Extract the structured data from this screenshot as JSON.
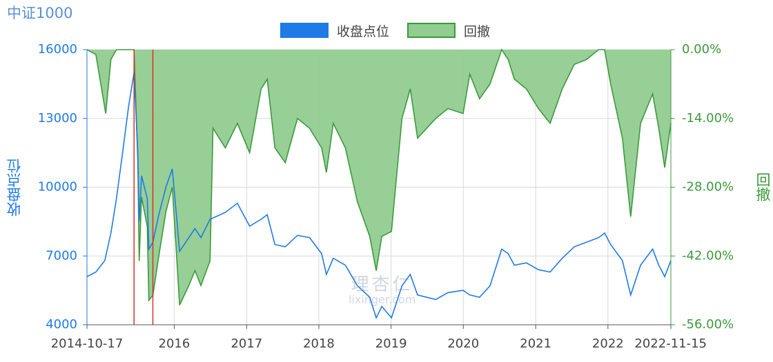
{
  "chart_data": {
    "type": "line",
    "title": "中证1000",
    "legend": [
      {
        "name": "收盘点位",
        "color": "#1e7ae6"
      },
      {
        "name": "回撤",
        "color": "#3a9a3a",
        "fill": "#91cc91"
      }
    ],
    "ylabel_left": "收盘点位",
    "ylabel_right": "回撤",
    "ylim_left": [
      4000,
      16000
    ],
    "yticks_left": [
      "16000",
      "13000",
      "10000",
      "7000",
      "4000"
    ],
    "ylim_right": [
      -0.56,
      0
    ],
    "yticks_right": [
      "0.00%",
      "-14.00%",
      "-28.00%",
      "-42.00%",
      "-56.00%"
    ],
    "x_start": "2014-10-17",
    "x_end": "2022-11-15",
    "xticks": [
      "2014-10-17",
      "2016",
      "2017",
      "2018",
      "2019",
      "2020",
      "2021",
      "2022",
      "2022-11-15"
    ],
    "grid": true,
    "legend_position": "top-center",
    "markers": [
      "2015-06-12",
      "2015-09-15"
    ],
    "series": [
      {
        "name": "收盘点位",
        "points": [
          [
            "2014-10-17",
            6100
          ],
          [
            "2014-12-01",
            6300
          ],
          [
            "2015-01-15",
            6800
          ],
          [
            "2015-02-15",
            8000
          ],
          [
            "2015-03-15",
            9500
          ],
          [
            "2015-04-15",
            11500
          ],
          [
            "2015-05-15",
            13500
          ],
          [
            "2015-06-12",
            15000
          ],
          [
            "2015-07-01",
            11500
          ],
          [
            "2015-07-08",
            8500
          ],
          [
            "2015-07-20",
            10500
          ],
          [
            "2015-08-18",
            9500
          ],
          [
            "2015-08-26",
            7300
          ],
          [
            "2015-09-15",
            7600
          ],
          [
            "2015-10-15",
            8800
          ],
          [
            "2015-11-20",
            10000
          ],
          [
            "2015-12-22",
            10800
          ],
          [
            "2016-01-10",
            9000
          ],
          [
            "2016-01-28",
            7200
          ],
          [
            "2016-03-15",
            7800
          ],
          [
            "2016-04-15",
            8200
          ],
          [
            "2016-05-15",
            7800
          ],
          [
            "2016-06-30",
            8600
          ],
          [
            "2016-09-15",
            8900
          ],
          [
            "2016-11-15",
            9300
          ],
          [
            "2017-01-16",
            8300
          ],
          [
            "2017-03-15",
            8600
          ],
          [
            "2017-04-15",
            8800
          ],
          [
            "2017-05-24",
            7500
          ],
          [
            "2017-07-15",
            7400
          ],
          [
            "2017-09-15",
            7900
          ],
          [
            "2017-11-15",
            7800
          ],
          [
            "2018-01-15",
            7100
          ],
          [
            "2018-02-08",
            6200
          ],
          [
            "2018-03-15",
            6900
          ],
          [
            "2018-05-15",
            6600
          ],
          [
            "2018-07-15",
            5700
          ],
          [
            "2018-09-15",
            5200
          ],
          [
            "2018-10-18",
            4300
          ],
          [
            "2018-11-15",
            4800
          ],
          [
            "2019-01-03",
            4300
          ],
          [
            "2019-02-25",
            5700
          ],
          [
            "2019-04-08",
            6200
          ],
          [
            "2019-05-15",
            5300
          ],
          [
            "2019-08-15",
            5100
          ],
          [
            "2019-10-15",
            5400
          ],
          [
            "2019-12-31",
            5500
          ],
          [
            "2020-02-03",
            5300
          ],
          [
            "2020-03-23",
            5200
          ],
          [
            "2020-05-15",
            5700
          ],
          [
            "2020-07-13",
            7300
          ],
          [
            "2020-08-15",
            7100
          ],
          [
            "2020-09-15",
            6600
          ],
          [
            "2020-11-15",
            6700
          ],
          [
            "2021-01-15",
            6400
          ],
          [
            "2021-03-15",
            6300
          ],
          [
            "2021-05-15",
            6900
          ],
          [
            "2021-07-15",
            7400
          ],
          [
            "2021-09-15",
            7600
          ],
          [
            "2021-11-15",
            7800
          ],
          [
            "2021-12-15",
            8000
          ],
          [
            "2022-01-15",
            7500
          ],
          [
            "2022-03-15",
            6800
          ],
          [
            "2022-04-26",
            5300
          ],
          [
            "2022-06-15",
            6600
          ],
          [
            "2022-08-15",
            7300
          ],
          [
            "2022-09-15",
            6600
          ],
          [
            "2022-10-15",
            6100
          ],
          [
            "2022-11-15",
            6800
          ]
        ]
      },
      {
        "name": "回撤",
        "points": [
          [
            "2014-10-17",
            0
          ],
          [
            "2014-12-01",
            -0.01
          ],
          [
            "2015-01-20",
            -0.13
          ],
          [
            "2015-02-15",
            -0.02
          ],
          [
            "2015-03-15",
            0
          ],
          [
            "2015-06-12",
            0
          ],
          [
            "2015-07-01",
            -0.23
          ],
          [
            "2015-07-08",
            -0.43
          ],
          [
            "2015-07-20",
            -0.3
          ],
          [
            "2015-08-18",
            -0.36
          ],
          [
            "2015-08-26",
            -0.51
          ],
          [
            "2015-09-15",
            -0.5
          ],
          [
            "2015-10-15",
            -0.42
          ],
          [
            "2015-11-20",
            -0.33
          ],
          [
            "2015-12-22",
            -0.28
          ],
          [
            "2016-01-10",
            -0.4
          ],
          [
            "2016-01-28",
            -0.52
          ],
          [
            "2016-03-15",
            -0.48
          ],
          [
            "2016-04-15",
            -0.45
          ],
          [
            "2016-05-15",
            -0.48
          ],
          [
            "2016-06-30",
            -0.43
          ],
          [
            "2016-07-15",
            -0.16
          ],
          [
            "2016-09-15",
            -0.2
          ],
          [
            "2016-11-15",
            -0.15
          ],
          [
            "2017-01-16",
            -0.21
          ],
          [
            "2017-03-15",
            -0.08
          ],
          [
            "2017-04-15",
            -0.06
          ],
          [
            "2017-05-24",
            -0.2
          ],
          [
            "2017-07-15",
            -0.23
          ],
          [
            "2017-09-15",
            -0.14
          ],
          [
            "2017-11-15",
            -0.16
          ],
          [
            "2018-01-15",
            -0.2
          ],
          [
            "2018-02-08",
            -0.25
          ],
          [
            "2018-03-15",
            -0.15
          ],
          [
            "2018-05-15",
            -0.2
          ],
          [
            "2018-07-15",
            -0.31
          ],
          [
            "2018-09-15",
            -0.38
          ],
          [
            "2018-10-18",
            -0.45
          ],
          [
            "2018-11-15",
            -0.38
          ],
          [
            "2019-01-03",
            -0.37
          ],
          [
            "2019-02-25",
            -0.14
          ],
          [
            "2019-04-08",
            -0.08
          ],
          [
            "2019-05-15",
            -0.18
          ],
          [
            "2019-08-15",
            -0.14
          ],
          [
            "2019-10-15",
            -0.12
          ],
          [
            "2019-12-31",
            -0.13
          ],
          [
            "2020-02-03",
            -0.05
          ],
          [
            "2020-03-23",
            -0.1
          ],
          [
            "2020-05-15",
            -0.07
          ],
          [
            "2020-07-13",
            0
          ],
          [
            "2020-08-15",
            -0.02
          ],
          [
            "2020-09-15",
            -0.06
          ],
          [
            "2020-11-15",
            -0.08
          ],
          [
            "2021-01-15",
            -0.12
          ],
          [
            "2021-03-15",
            -0.15
          ],
          [
            "2021-05-15",
            -0.08
          ],
          [
            "2021-07-15",
            -0.03
          ],
          [
            "2021-09-15",
            -0.02
          ],
          [
            "2021-11-15",
            0
          ],
          [
            "2021-12-15",
            0
          ],
          [
            "2022-01-15",
            -0.07
          ],
          [
            "2022-03-15",
            -0.18
          ],
          [
            "2022-04-26",
            -0.34
          ],
          [
            "2022-06-15",
            -0.15
          ],
          [
            "2022-08-15",
            -0.09
          ],
          [
            "2022-09-15",
            -0.16
          ],
          [
            "2022-10-15",
            -0.24
          ],
          [
            "2022-11-15",
            -0.15
          ]
        ]
      }
    ]
  },
  "watermark": {
    "line1": "理杏仁",
    "line2": "lixinger.com"
  }
}
